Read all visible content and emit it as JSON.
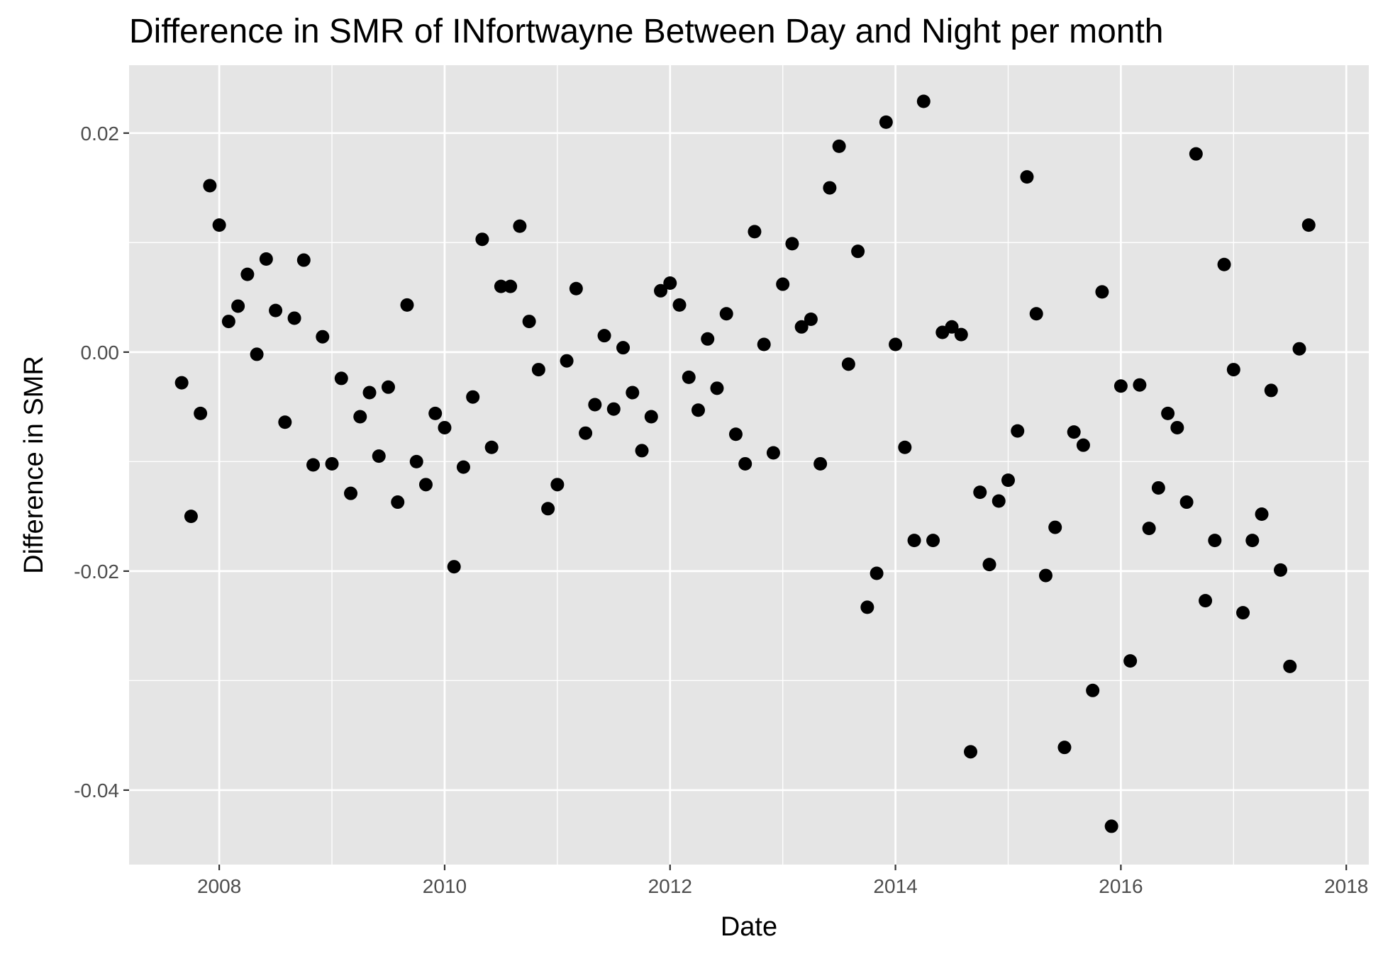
{
  "chart_data": {
    "type": "scatter",
    "title": "Difference in SMR of INfortwayne Between Day and Night per month",
    "xlabel": "Date",
    "ylabel": "Difference in SMR",
    "x_is_date": true,
    "xlim": [
      2007.2,
      2018.2
    ],
    "ylim": [
      -0.0468,
      0.0262
    ],
    "x_ticks": [
      2008,
      2010,
      2012,
      2014,
      2016,
      2018
    ],
    "x_tick_labels": [
      "2008",
      "2010",
      "2012",
      "2014",
      "2016",
      "2018"
    ],
    "y_ticks": [
      0.02,
      0.0,
      -0.02,
      -0.04
    ],
    "y_tick_labels": [
      "0.02",
      "0.00",
      "-0.02",
      "-0.04"
    ],
    "grid": true,
    "legend": "none",
    "colors": {
      "panel_background": "#e5e5e5",
      "grid_line": "#ffffff",
      "point": "#000000",
      "tick_label": "#4d4d4d"
    },
    "points": [
      {
        "date": "2007-09",
        "value": -0.0028
      },
      {
        "date": "2007-10",
        "value": -0.015
      },
      {
        "date": "2007-11",
        "value": -0.0056
      },
      {
        "date": "2007-12",
        "value": 0.0152
      },
      {
        "date": "2008-01",
        "value": 0.0116
      },
      {
        "date": "2008-02",
        "value": 0.0028
      },
      {
        "date": "2008-03",
        "value": 0.0042
      },
      {
        "date": "2008-04",
        "value": 0.0071
      },
      {
        "date": "2008-05",
        "value": -0.0002
      },
      {
        "date": "2008-06",
        "value": 0.0085
      },
      {
        "date": "2008-07",
        "value": 0.0038
      },
      {
        "date": "2008-08",
        "value": -0.0064
      },
      {
        "date": "2008-09",
        "value": 0.0031
      },
      {
        "date": "2008-10",
        "value": 0.0084
      },
      {
        "date": "2008-11",
        "value": -0.0103
      },
      {
        "date": "2008-12",
        "value": 0.0014
      },
      {
        "date": "2009-01",
        "value": -0.0102
      },
      {
        "date": "2009-02",
        "value": -0.0024
      },
      {
        "date": "2009-03",
        "value": -0.0129
      },
      {
        "date": "2009-04",
        "value": -0.0059
      },
      {
        "date": "2009-05",
        "value": -0.0037
      },
      {
        "date": "2009-06",
        "value": -0.0095
      },
      {
        "date": "2009-07",
        "value": -0.0032
      },
      {
        "date": "2009-08",
        "value": -0.0137
      },
      {
        "date": "2009-09",
        "value": 0.0043
      },
      {
        "date": "2009-10",
        "value": -0.01
      },
      {
        "date": "2009-11",
        "value": -0.0121
      },
      {
        "date": "2009-12",
        "value": -0.0056
      },
      {
        "date": "2010-01",
        "value": -0.0069
      },
      {
        "date": "2010-02",
        "value": -0.0196
      },
      {
        "date": "2010-03",
        "value": -0.0105
      },
      {
        "date": "2010-04",
        "value": -0.0041
      },
      {
        "date": "2010-05",
        "value": 0.0103
      },
      {
        "date": "2010-06",
        "value": -0.0087
      },
      {
        "date": "2010-07",
        "value": 0.006
      },
      {
        "date": "2010-08",
        "value": 0.006
      },
      {
        "date": "2010-09",
        "value": 0.0115
      },
      {
        "date": "2010-10",
        "value": 0.0028
      },
      {
        "date": "2010-11",
        "value": -0.0016
      },
      {
        "date": "2010-12",
        "value": -0.0143
      },
      {
        "date": "2011-01",
        "value": -0.0121
      },
      {
        "date": "2011-02",
        "value": -0.0008
      },
      {
        "date": "2011-03",
        "value": 0.0058
      },
      {
        "date": "2011-04",
        "value": -0.0074
      },
      {
        "date": "2011-05",
        "value": -0.0048
      },
      {
        "date": "2011-06",
        "value": 0.0015
      },
      {
        "date": "2011-07",
        "value": -0.0052
      },
      {
        "date": "2011-08",
        "value": 0.0004
      },
      {
        "date": "2011-09",
        "value": -0.0037
      },
      {
        "date": "2011-10",
        "value": -0.009
      },
      {
        "date": "2011-11",
        "value": -0.0059
      },
      {
        "date": "2011-12",
        "value": 0.0056
      },
      {
        "date": "2012-01",
        "value": 0.0063
      },
      {
        "date": "2012-02",
        "value": 0.0043
      },
      {
        "date": "2012-03",
        "value": -0.0023
      },
      {
        "date": "2012-04",
        "value": -0.0053
      },
      {
        "date": "2012-05",
        "value": 0.0012
      },
      {
        "date": "2012-06",
        "value": -0.0033
      },
      {
        "date": "2012-07",
        "value": 0.0035
      },
      {
        "date": "2012-08",
        "value": -0.0075
      },
      {
        "date": "2012-09",
        "value": -0.0102
      },
      {
        "date": "2012-10",
        "value": 0.011
      },
      {
        "date": "2012-11",
        "value": 0.0007
      },
      {
        "date": "2012-12",
        "value": -0.0092
      },
      {
        "date": "2013-01",
        "value": 0.0062
      },
      {
        "date": "2013-02",
        "value": 0.0099
      },
      {
        "date": "2013-03",
        "value": 0.0023
      },
      {
        "date": "2013-04",
        "value": 0.003
      },
      {
        "date": "2013-05",
        "value": -0.0102
      },
      {
        "date": "2013-06",
        "value": 0.015
      },
      {
        "date": "2013-07",
        "value": 0.0188
      },
      {
        "date": "2013-08",
        "value": -0.0011
      },
      {
        "date": "2013-09",
        "value": 0.0092
      },
      {
        "date": "2013-10",
        "value": -0.0233
      },
      {
        "date": "2013-11",
        "value": -0.0202
      },
      {
        "date": "2013-12",
        "value": 0.021
      },
      {
        "date": "2014-01",
        "value": 0.0007
      },
      {
        "date": "2014-02",
        "value": -0.0087
      },
      {
        "date": "2014-03",
        "value": -0.0172
      },
      {
        "date": "2014-04",
        "value": 0.0229
      },
      {
        "date": "2014-05",
        "value": -0.0172
      },
      {
        "date": "2014-06",
        "value": 0.0018
      },
      {
        "date": "2014-07",
        "value": 0.0023
      },
      {
        "date": "2014-08",
        "value": 0.0016
      },
      {
        "date": "2014-09",
        "value": -0.0365
      },
      {
        "date": "2014-10",
        "value": -0.0128
      },
      {
        "date": "2014-11",
        "value": -0.0194
      },
      {
        "date": "2014-12",
        "value": -0.0136
      },
      {
        "date": "2015-01",
        "value": -0.0117
      },
      {
        "date": "2015-02",
        "value": -0.0072
      },
      {
        "date": "2015-03",
        "value": 0.016
      },
      {
        "date": "2015-04",
        "value": 0.0035
      },
      {
        "date": "2015-05",
        "value": -0.0204
      },
      {
        "date": "2015-06",
        "value": -0.016
      },
      {
        "date": "2015-07",
        "value": -0.0361
      },
      {
        "date": "2015-08",
        "value": -0.0073
      },
      {
        "date": "2015-09",
        "value": -0.0085
      },
      {
        "date": "2015-10",
        "value": -0.0309
      },
      {
        "date": "2015-11",
        "value": 0.0055
      },
      {
        "date": "2015-12",
        "value": -0.0433
      },
      {
        "date": "2016-01",
        "value": -0.0031
      },
      {
        "date": "2016-02",
        "value": -0.0282
      },
      {
        "date": "2016-03",
        "value": -0.003
      },
      {
        "date": "2016-04",
        "value": -0.0161
      },
      {
        "date": "2016-05",
        "value": -0.0124
      },
      {
        "date": "2016-06",
        "value": -0.0056
      },
      {
        "date": "2016-07",
        "value": -0.0069
      },
      {
        "date": "2016-08",
        "value": -0.0137
      },
      {
        "date": "2016-09",
        "value": 0.0181
      },
      {
        "date": "2016-10",
        "value": -0.0227
      },
      {
        "date": "2016-11",
        "value": -0.0172
      },
      {
        "date": "2016-12",
        "value": 0.008
      },
      {
        "date": "2017-01",
        "value": -0.0016
      },
      {
        "date": "2017-02",
        "value": -0.0238
      },
      {
        "date": "2017-03",
        "value": -0.0172
      },
      {
        "date": "2017-04",
        "value": -0.0148
      },
      {
        "date": "2017-05",
        "value": -0.0035
      },
      {
        "date": "2017-06",
        "value": -0.0199
      },
      {
        "date": "2017-07",
        "value": -0.0287
      },
      {
        "date": "2017-08",
        "value": 0.0003
      },
      {
        "date": "2017-09",
        "value": 0.0116
      }
    ]
  }
}
